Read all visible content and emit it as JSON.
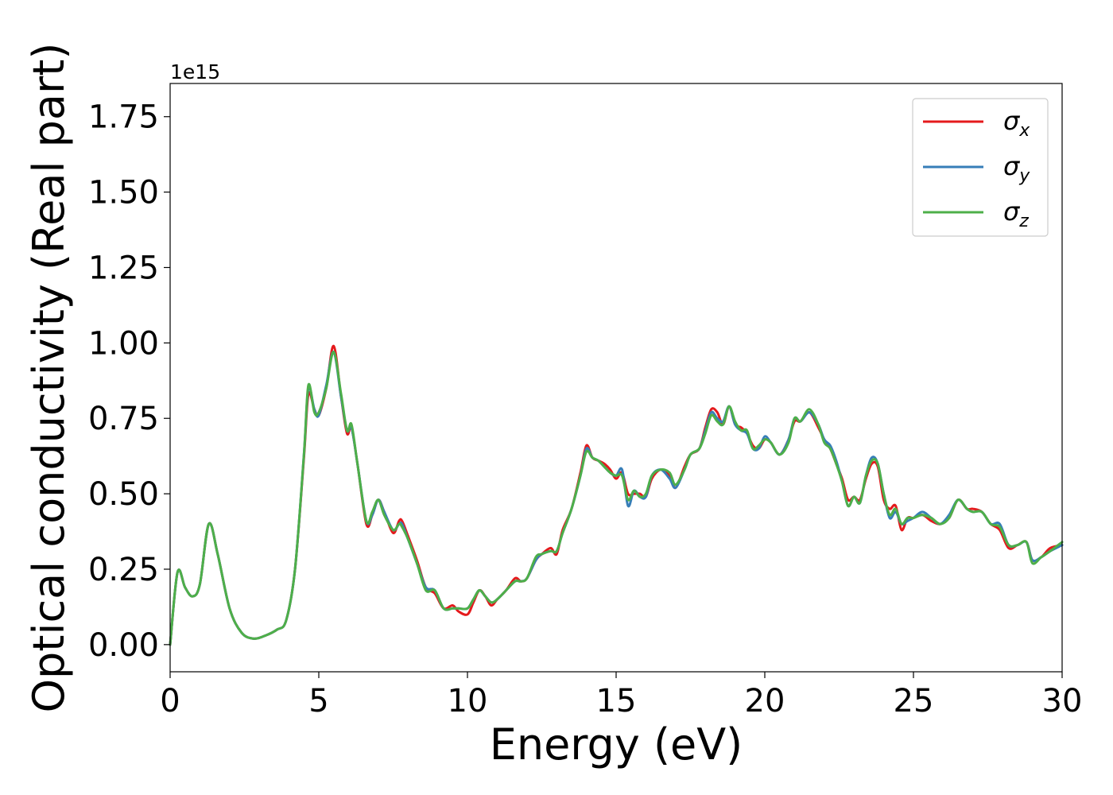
{
  "chart_data": {
    "type": "line",
    "title": "",
    "xlabel": "Energy (eV)",
    "ylabel": "Optical conductivity (Real part)",
    "y_offset_label": "1e15",
    "xlim": [
      0,
      30
    ],
    "ylim": [
      -0.09,
      1.86
    ],
    "x_ticks": [
      0,
      5,
      10,
      15,
      20,
      25,
      30
    ],
    "x_tick_labels": [
      "0",
      "5",
      "10",
      "15",
      "20",
      "25",
      "30"
    ],
    "y_ticks": [
      0,
      0.25,
      0.5,
      0.75,
      1.0,
      1.25,
      1.5,
      1.75
    ],
    "y_tick_labels": [
      "0.00",
      "0.25",
      "0.50",
      "0.75",
      "1.00",
      "1.25",
      "1.50",
      "1.75"
    ],
    "grid": false,
    "legend_position": "top-right",
    "x": [
      0,
      0.25,
      0.5,
      0.75,
      1.0,
      1.3,
      1.6,
      2.0,
      2.4,
      2.8,
      3.2,
      3.6,
      3.9,
      4.2,
      4.5,
      4.65,
      4.85,
      5.0,
      5.25,
      5.5,
      5.75,
      5.95,
      6.1,
      6.3,
      6.6,
      6.8,
      7.0,
      7.2,
      7.5,
      7.7,
      7.8,
      8.0,
      8.3,
      8.6,
      8.9,
      9.2,
      9.5,
      9.7,
      10.0,
      10.2,
      10.4,
      10.6,
      10.8,
      11.0,
      11.3,
      11.6,
      11.8,
      12.0,
      12.3,
      12.5,
      12.8,
      13.0,
      13.2,
      13.5,
      13.8,
      14.0,
      14.2,
      14.4,
      14.6,
      14.8,
      15.0,
      15.2,
      15.4,
      15.6,
      15.8,
      16.0,
      16.2,
      16.5,
      16.8,
      17.0,
      17.3,
      17.5,
      17.8,
      18.0,
      18.2,
      18.4,
      18.6,
      18.8,
      19.0,
      19.2,
      19.4,
      19.6,
      19.8,
      20.0,
      20.2,
      20.5,
      20.8,
      21.0,
      21.2,
      21.5,
      21.8,
      22.0,
      22.2,
      22.4,
      22.6,
      22.8,
      23.0,
      23.2,
      23.4,
      23.6,
      23.8,
      24.0,
      24.2,
      24.4,
      24.6,
      24.8,
      25.0,
      25.3,
      25.6,
      25.9,
      26.2,
      26.5,
      26.8,
      27.0,
      27.3,
      27.6,
      27.9,
      28.2,
      28.5,
      28.8,
      29.0,
      29.3,
      29.6,
      30.0
    ],
    "series": [
      {
        "name": "x",
        "color": "#e41a1c",
        "values": [
          0.0,
          0.24,
          0.19,
          0.16,
          0.2,
          0.4,
          0.3,
          0.12,
          0.04,
          0.02,
          0.03,
          0.05,
          0.08,
          0.25,
          0.62,
          0.83,
          0.78,
          0.76,
          0.85,
          0.99,
          0.82,
          0.7,
          0.72,
          0.6,
          0.4,
          0.43,
          0.48,
          0.44,
          0.37,
          0.41,
          0.41,
          0.36,
          0.28,
          0.19,
          0.17,
          0.12,
          0.13,
          0.11,
          0.1,
          0.14,
          0.18,
          0.16,
          0.13,
          0.15,
          0.18,
          0.22,
          0.21,
          0.22,
          0.28,
          0.3,
          0.32,
          0.3,
          0.38,
          0.45,
          0.57,
          0.66,
          0.62,
          0.61,
          0.6,
          0.58,
          0.55,
          0.57,
          0.5,
          0.5,
          0.5,
          0.49,
          0.55,
          0.58,
          0.56,
          0.52,
          0.59,
          0.63,
          0.65,
          0.72,
          0.78,
          0.77,
          0.73,
          0.79,
          0.73,
          0.72,
          0.7,
          0.66,
          0.65,
          0.68,
          0.67,
          0.63,
          0.68,
          0.74,
          0.74,
          0.77,
          0.72,
          0.68,
          0.65,
          0.6,
          0.55,
          0.48,
          0.49,
          0.48,
          0.55,
          0.6,
          0.59,
          0.48,
          0.45,
          0.46,
          0.38,
          0.42,
          0.42,
          0.43,
          0.41,
          0.4,
          0.42,
          0.48,
          0.45,
          0.45,
          0.44,
          0.4,
          0.38,
          0.32,
          0.33,
          0.34,
          0.28,
          0.29,
          0.32,
          0.33
        ]
      },
      {
        "name": "y",
        "color": "#377eb8",
        "values": [
          0.0,
          0.24,
          0.19,
          0.16,
          0.2,
          0.4,
          0.3,
          0.12,
          0.04,
          0.02,
          0.03,
          0.05,
          0.08,
          0.25,
          0.63,
          0.85,
          0.78,
          0.76,
          0.86,
          0.97,
          0.82,
          0.71,
          0.72,
          0.6,
          0.41,
          0.43,
          0.48,
          0.44,
          0.38,
          0.4,
          0.4,
          0.35,
          0.27,
          0.19,
          0.18,
          0.12,
          0.12,
          0.12,
          0.12,
          0.15,
          0.18,
          0.16,
          0.14,
          0.15,
          0.18,
          0.21,
          0.21,
          0.22,
          0.28,
          0.3,
          0.31,
          0.31,
          0.37,
          0.45,
          0.56,
          0.65,
          0.62,
          0.61,
          0.59,
          0.57,
          0.56,
          0.58,
          0.46,
          0.51,
          0.49,
          0.49,
          0.56,
          0.58,
          0.55,
          0.52,
          0.58,
          0.63,
          0.65,
          0.71,
          0.77,
          0.75,
          0.74,
          0.79,
          0.73,
          0.71,
          0.7,
          0.65,
          0.65,
          0.69,
          0.67,
          0.63,
          0.68,
          0.75,
          0.74,
          0.77,
          0.73,
          0.68,
          0.66,
          0.61,
          0.54,
          0.46,
          0.49,
          0.47,
          0.56,
          0.62,
          0.6,
          0.5,
          0.42,
          0.44,
          0.4,
          0.41,
          0.42,
          0.44,
          0.42,
          0.4,
          0.43,
          0.48,
          0.45,
          0.44,
          0.44,
          0.4,
          0.4,
          0.33,
          0.33,
          0.34,
          0.28,
          0.29,
          0.31,
          0.33
        ]
      },
      {
        "name": "z",
        "color": "#4daf4a",
        "values": [
          0.0,
          0.24,
          0.19,
          0.16,
          0.2,
          0.4,
          0.3,
          0.12,
          0.04,
          0.02,
          0.03,
          0.05,
          0.08,
          0.25,
          0.63,
          0.86,
          0.77,
          0.77,
          0.85,
          0.97,
          0.83,
          0.71,
          0.73,
          0.6,
          0.41,
          0.44,
          0.48,
          0.43,
          0.38,
          0.4,
          0.39,
          0.35,
          0.27,
          0.18,
          0.18,
          0.12,
          0.12,
          0.12,
          0.12,
          0.15,
          0.18,
          0.16,
          0.14,
          0.15,
          0.18,
          0.21,
          0.21,
          0.22,
          0.29,
          0.3,
          0.31,
          0.31,
          0.37,
          0.45,
          0.56,
          0.64,
          0.62,
          0.61,
          0.59,
          0.57,
          0.56,
          0.56,
          0.48,
          0.51,
          0.49,
          0.5,
          0.56,
          0.58,
          0.57,
          0.53,
          0.58,
          0.63,
          0.65,
          0.7,
          0.76,
          0.74,
          0.73,
          0.79,
          0.74,
          0.71,
          0.71,
          0.65,
          0.66,
          0.68,
          0.67,
          0.63,
          0.67,
          0.75,
          0.74,
          0.78,
          0.73,
          0.67,
          0.65,
          0.6,
          0.54,
          0.46,
          0.49,
          0.47,
          0.56,
          0.61,
          0.6,
          0.5,
          0.43,
          0.45,
          0.4,
          0.42,
          0.42,
          0.43,
          0.42,
          0.4,
          0.42,
          0.48,
          0.45,
          0.44,
          0.44,
          0.4,
          0.39,
          0.33,
          0.33,
          0.34,
          0.27,
          0.29,
          0.31,
          0.34
        ]
      }
    ]
  },
  "legend": {
    "items": [
      {
        "symbol": "σ",
        "sub": "x",
        "color": "#e41a1c"
      },
      {
        "symbol": "σ",
        "sub": "y",
        "color": "#377eb8"
      },
      {
        "symbol": "σ",
        "sub": "z",
        "color": "#4daf4a"
      }
    ]
  }
}
